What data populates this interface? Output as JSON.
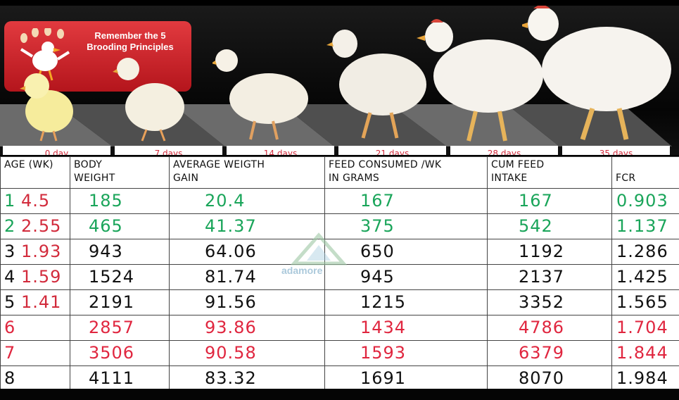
{
  "banner": {
    "badge_text": "Remember the 5 Brooding Principles",
    "day_labels": [
      "0 day",
      "7 days",
      "14 days",
      "21 days",
      "28 days",
      "35 days"
    ]
  },
  "table": {
    "headers": [
      [
        "AGE (WK)"
      ],
      [
        "BODY",
        "WEIGHT"
      ],
      [
        "AVERAGE WEIGTH",
        "GAIN"
      ],
      [
        "FEED CONSUMED /WK",
        "IN GRAMS"
      ],
      [
        "CUM FEED",
        "INTAKE"
      ],
      [
        "",
        "FCR"
      ]
    ],
    "rows": [
      {
        "week": "1",
        "rate": "4.5",
        "body_weight": "185",
        "avg_gain": "20.4",
        "feed_week": "167",
        "cum_feed": "167",
        "fcr": "0.903",
        "color": "green"
      },
      {
        "week": "2",
        "rate": "2.55",
        "body_weight": "465",
        "avg_gain": "41.37",
        "feed_week": "375",
        "cum_feed": "542",
        "fcr": "1.137",
        "color": "green"
      },
      {
        "week": "3",
        "rate": "1.93",
        "body_weight": "943",
        "avg_gain": "64.06",
        "feed_week": "650",
        "cum_feed": "1192",
        "fcr": "1.286",
        "color": "black"
      },
      {
        "week": "4",
        "rate": "1.59",
        "body_weight": "1524",
        "avg_gain": "81.74",
        "feed_week": "945",
        "cum_feed": "2137",
        "fcr": "1.425",
        "color": "black"
      },
      {
        "week": "5",
        "rate": "1.41",
        "body_weight": "2191",
        "avg_gain": "91.56",
        "feed_week": "1215",
        "cum_feed": "3352",
        "fcr": "1.565",
        "color": "black"
      },
      {
        "week": "6",
        "rate": "",
        "body_weight": "2857",
        "avg_gain": "93.86",
        "feed_week": "1434",
        "cum_feed": "4786",
        "fcr": "1.704",
        "color": "red"
      },
      {
        "week": "7",
        "rate": "",
        "body_weight": "3506",
        "avg_gain": "90.58",
        "feed_week": "1593",
        "cum_feed": "6379",
        "fcr": "1.844",
        "color": "red"
      },
      {
        "week": "8",
        "rate": "",
        "body_weight": "4111",
        "avg_gain": "83.32",
        "feed_week": "1691",
        "cum_feed": "8070",
        "fcr": "1.984",
        "color": "black"
      }
    ]
  },
  "watermark": {
    "name": "adamore",
    "icon": "house-roof-icon"
  },
  "colors": {
    "green": "#1aa55a",
    "red": "#e0263f",
    "rate_red": "#d22b3c",
    "badge_red": "#c8202a"
  }
}
